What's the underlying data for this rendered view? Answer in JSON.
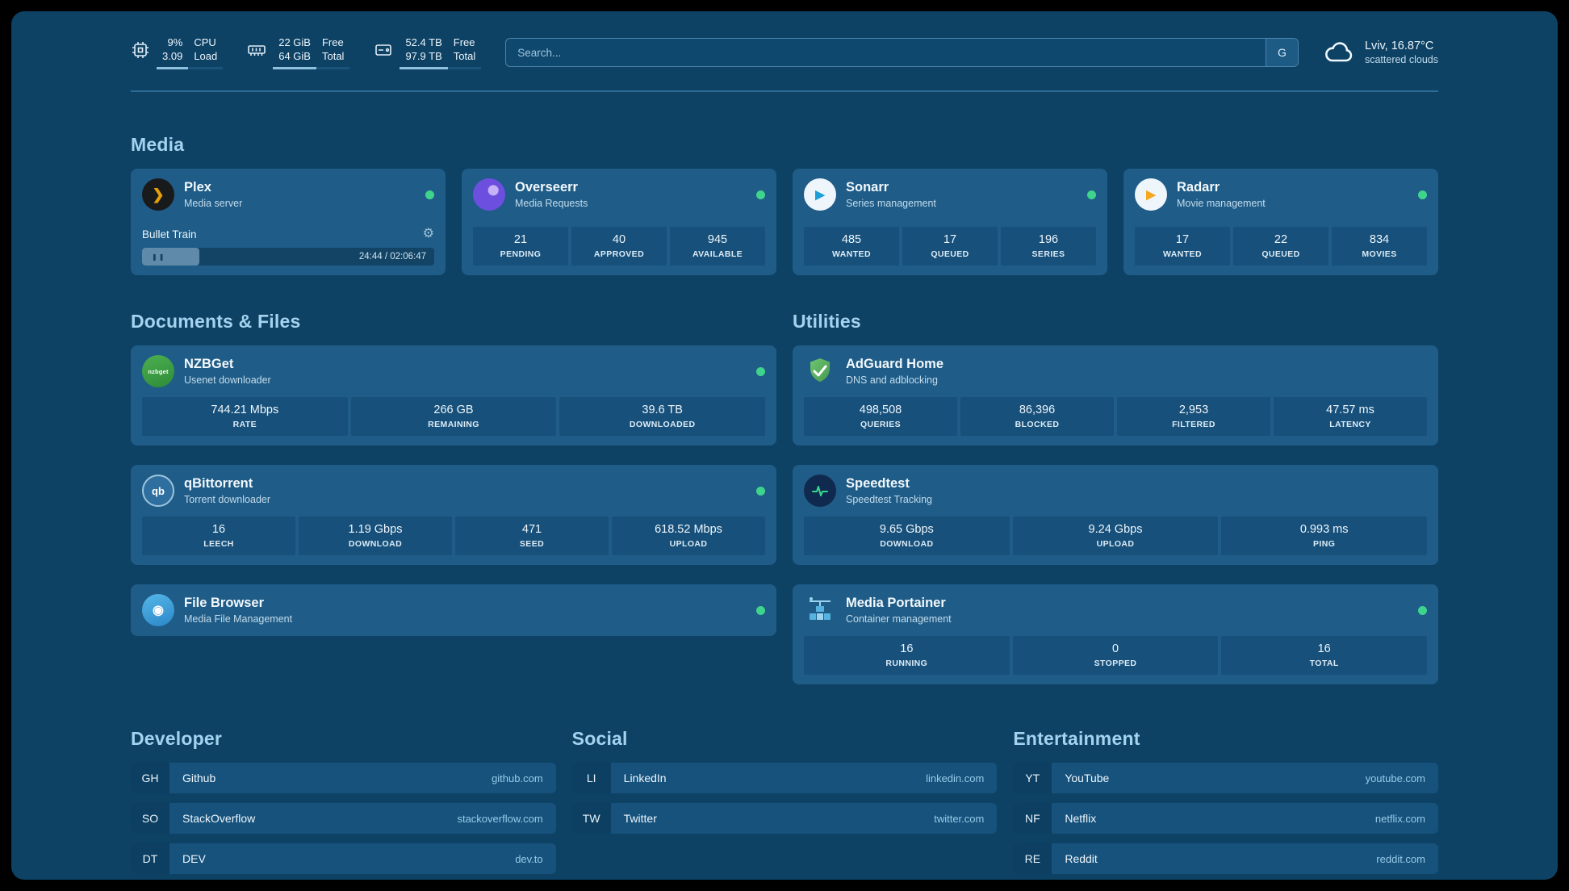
{
  "icons": {
    "gear": "⚙",
    "pause": "❚❚",
    "play": "▶",
    "plex_chevron": "❯",
    "filebrowser_glyph": "◉"
  },
  "colors": {
    "accent": "#a5d3ef",
    "status_ok": "#3ed48c",
    "background": "#0d4265",
    "card": "#1f5c87"
  },
  "topbar": {
    "cpu": {
      "value1": "9%",
      "value2": "3.09",
      "label1": "CPU",
      "label2": "Load"
    },
    "memory": {
      "value1": "22 GiB",
      "value2": "64 GiB",
      "label1": "Free",
      "label2": "Total"
    },
    "disk": {
      "value1": "52.4 TB",
      "value2": "97.9 TB",
      "label1": "Free",
      "label2": "Total"
    },
    "search": {
      "placeholder": "Search...",
      "engine_label": "G"
    },
    "weather": {
      "location": "Lviv, 16.87°C",
      "condition": "scattered clouds"
    }
  },
  "media": {
    "heading": "Media",
    "plex": {
      "title": "Plex",
      "subtitle": "Media server",
      "now_playing": "Bullet Train",
      "time": "24:44 / 02:06:47",
      "progress_pct": 19.5
    },
    "overseerr": {
      "title": "Overseerr",
      "subtitle": "Media Requests",
      "stats": [
        {
          "value": "21",
          "label": "PENDING"
        },
        {
          "value": "40",
          "label": "APPROVED"
        },
        {
          "value": "945",
          "label": "AVAILABLE"
        }
      ]
    },
    "sonarr": {
      "title": "Sonarr",
      "subtitle": "Series management",
      "stats": [
        {
          "value": "485",
          "label": "WANTED"
        },
        {
          "value": "17",
          "label": "QUEUED"
        },
        {
          "value": "196",
          "label": "SERIES"
        }
      ]
    },
    "radarr": {
      "title": "Radarr",
      "subtitle": "Movie management",
      "stats": [
        {
          "value": "17",
          "label": "WANTED"
        },
        {
          "value": "22",
          "label": "QUEUED"
        },
        {
          "value": "834",
          "label": "MOVIES"
        }
      ]
    }
  },
  "documents": {
    "heading": "Documents & Files",
    "nzbget": {
      "title": "NZBGet",
      "subtitle": "Usenet downloader",
      "icon_text": "nzbget",
      "stats": [
        {
          "value": "744.21 Mbps",
          "label": "RATE"
        },
        {
          "value": "266 GB",
          "label": "REMAINING"
        },
        {
          "value": "39.6 TB",
          "label": "DOWNLOADED"
        }
      ]
    },
    "qbittorrent": {
      "title": "qBittorrent",
      "subtitle": "Torrent downloader",
      "icon_text": "qb",
      "stats": [
        {
          "value": "16",
          "label": "LEECH"
        },
        {
          "value": "1.19 Gbps",
          "label": "DOWNLOAD"
        },
        {
          "value": "471",
          "label": "SEED"
        },
        {
          "value": "618.52 Mbps",
          "label": "UPLOAD"
        }
      ]
    },
    "filebrowser": {
      "title": "File Browser",
      "subtitle": "Media File Management"
    }
  },
  "utilities": {
    "heading": "Utilities",
    "adguard": {
      "title": "AdGuard Home",
      "subtitle": "DNS and adblocking",
      "stats": [
        {
          "value": "498,508",
          "label": "QUERIES"
        },
        {
          "value": "86,396",
          "label": "BLOCKED"
        },
        {
          "value": "2,953",
          "label": "FILTERED"
        },
        {
          "value": "47.57 ms",
          "label": "LATENCY"
        }
      ]
    },
    "speedtest": {
      "title": "Speedtest",
      "subtitle": "Speedtest Tracking",
      "stats": [
        {
          "value": "9.65 Gbps",
          "label": "DOWNLOAD"
        },
        {
          "value": "9.24 Gbps",
          "label": "UPLOAD"
        },
        {
          "value": "0.993 ms",
          "label": "PING"
        }
      ]
    },
    "portainer": {
      "title": "Media Portainer",
      "subtitle": "Container management",
      "stats": [
        {
          "value": "16",
          "label": "RUNNING"
        },
        {
          "value": "0",
          "label": "STOPPED"
        },
        {
          "value": "16",
          "label": "TOTAL"
        }
      ]
    }
  },
  "bookmarks": [
    {
      "heading": "Developer",
      "items": [
        {
          "abbr": "GH",
          "name": "Github",
          "url": "github.com"
        },
        {
          "abbr": "SO",
          "name": "StackOverflow",
          "url": "stackoverflow.com"
        },
        {
          "abbr": "DT",
          "name": "DEV",
          "url": "dev.to"
        }
      ]
    },
    {
      "heading": "Social",
      "items": [
        {
          "abbr": "LI",
          "name": "LinkedIn",
          "url": "linkedin.com"
        },
        {
          "abbr": "TW",
          "name": "Twitter",
          "url": "twitter.com"
        }
      ]
    },
    {
      "heading": "Entertainment",
      "items": [
        {
          "abbr": "YT",
          "name": "YouTube",
          "url": "youtube.com"
        },
        {
          "abbr": "NF",
          "name": "Netflix",
          "url": "netflix.com"
        },
        {
          "abbr": "RE",
          "name": "Reddit",
          "url": "reddit.com"
        }
      ]
    }
  ]
}
